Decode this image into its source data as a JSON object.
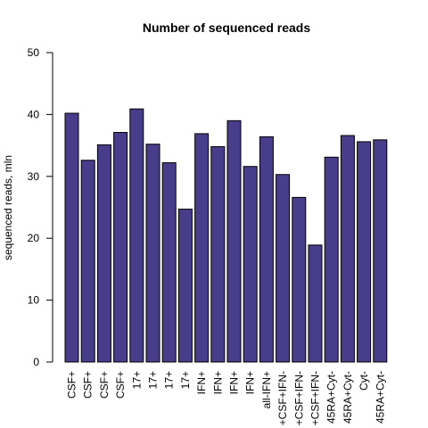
{
  "chart_data": {
    "type": "bar",
    "title": "Number of sequenced reads",
    "ylabel": "sequenced reads, mln",
    "xlabel": "",
    "ylim": [
      0,
      50
    ],
    "yticks": [
      0,
      10,
      20,
      30,
      40,
      50
    ],
    "categories": [
      "CSF+",
      "CSF+",
      "CSF+",
      "CSF+",
      "17+",
      "17+",
      "17+",
      "17+",
      "IFN+",
      "IFN+",
      "IFN+",
      "IFN+",
      "all-IFN+",
      "+CSF+IFN-",
      "+CSF+IFN-",
      "+CSF+IFN-",
      "45RA+Cyt-",
      "45RA+Cyt-",
      "Cyt-",
      "45RA+Cyt-"
    ],
    "values": [
      40.2,
      32.6,
      35.1,
      37.1,
      40.9,
      35.2,
      32.2,
      24.7,
      36.9,
      34.8,
      39.0,
      31.6,
      36.4,
      30.3,
      26.6,
      18.9,
      33.1,
      36.6,
      35.6,
      35.9
    ],
    "bar_color": "#483D8B",
    "grid": false,
    "legend": "none"
  }
}
